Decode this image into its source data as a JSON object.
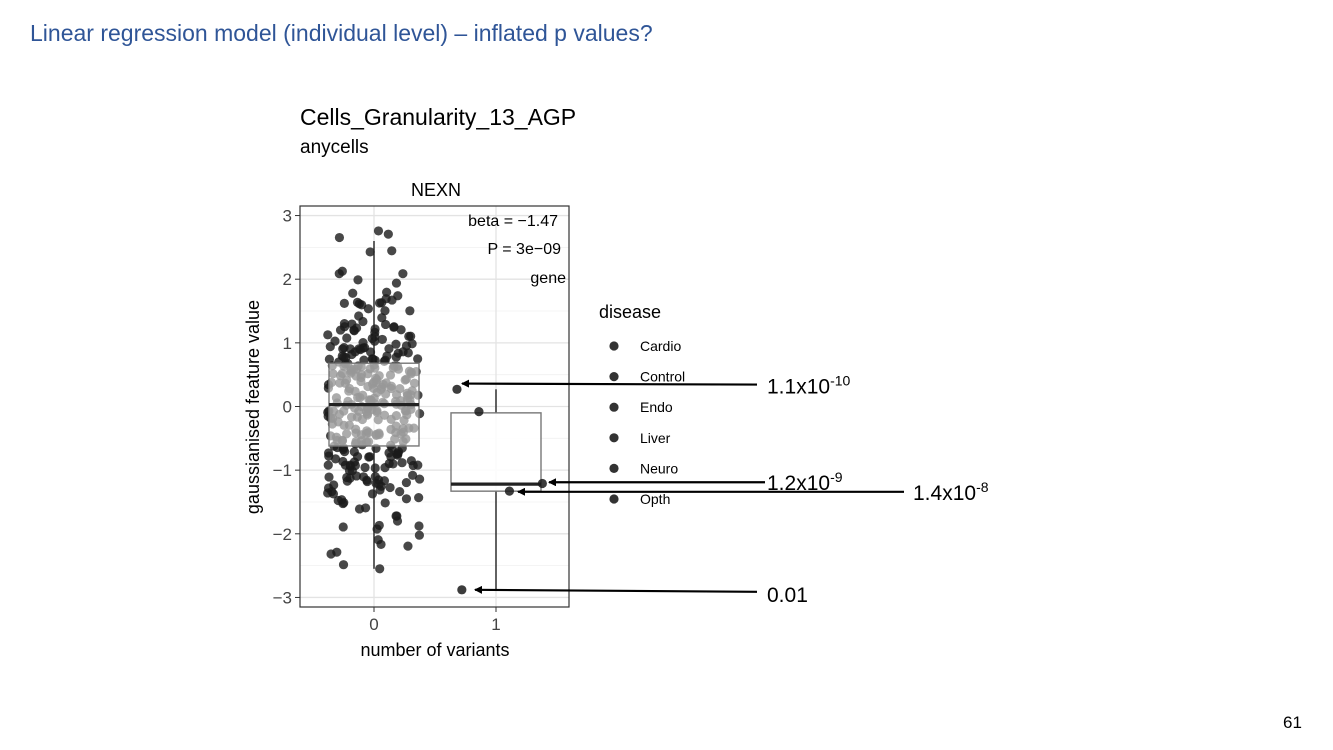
{
  "slide": {
    "title": "Linear regression model (individual level) – inflated p values?",
    "page_number": "61"
  },
  "chart_data": {
    "type": "box",
    "title": "Cells_Granularity_13_AGP",
    "subtitle": "anycells",
    "facet_label": "NEXN",
    "xlabel": "number of variants",
    "ylabel": "gaussianised feature value",
    "x_ticks": [
      "0",
      "1"
    ],
    "y_ticks": [
      -3,
      -2,
      -1,
      0,
      1,
      2,
      3
    ],
    "ylim": [
      -3.15,
      3.15
    ],
    "annotation": [
      "beta = −1.47",
      "P = 3e−09",
      "gene"
    ],
    "legend": {
      "title": "disease",
      "position": "right",
      "entries": [
        "Cardio",
        "Control",
        "Endo",
        "Liver",
        "Neuro",
        "Opth"
      ]
    },
    "boxes": [
      {
        "group": "0",
        "lower_whisker": -2.55,
        "q1": -0.62,
        "median": 0.03,
        "q3": 0.68,
        "upper_whisker": 2.6
      },
      {
        "group": "1",
        "lower_whisker": -2.88,
        "q1": -1.33,
        "median": -1.22,
        "q3": -0.1,
        "upper_whisker": 0.27
      }
    ],
    "points_group1": [
      {
        "x": 0.68,
        "y": 0.27
      },
      {
        "x": 0.86,
        "y": -0.08
      },
      {
        "x": 1.38,
        "y": -1.21
      },
      {
        "x": 1.11,
        "y": -1.33
      },
      {
        "x": 0.72,
        "y": -2.88
      }
    ],
    "points_group0_count": 330,
    "callouts": [
      {
        "label": "1.1x10",
        "exp": "-10",
        "target_y": 0.36
      },
      {
        "label": "1.2x10",
        "exp": "-9",
        "target_y": -1.19
      },
      {
        "label": "1.4x10",
        "exp": "-8",
        "target_y": -1.34
      },
      {
        "label": "0.01",
        "exp": "",
        "target_y": -2.88
      }
    ]
  }
}
